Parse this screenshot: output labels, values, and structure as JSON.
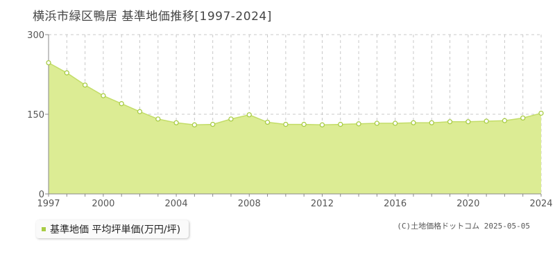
{
  "title": "横浜市緑区鴨居 基準地価推移[1997-2024]",
  "legend_label": "基準地価 平均坪単価(万円/坪)",
  "copyright": "(C)土地価格ドットコム 2025-05-05",
  "colors": {
    "fill": "#dcec94",
    "line": "#c3dd68",
    "point_stroke": "#a8cc45",
    "point_fill": "#ffffff",
    "legend_marker": "#a8cc45",
    "grid_dash": "#c8c8c8",
    "axis": "#888888"
  },
  "chart_data": {
    "type": "area",
    "x": [
      1997,
      1998,
      1999,
      2000,
      2001,
      2002,
      2003,
      2004,
      2005,
      2006,
      2007,
      2008,
      2009,
      2010,
      2011,
      2012,
      2013,
      2014,
      2015,
      2016,
      2017,
      2018,
      2019,
      2020,
      2021,
      2022,
      2023,
      2024
    ],
    "series": [
      {
        "name": "基準地価 平均坪単価(万円/坪)",
        "values": [
          247,
          228,
          205,
          185,
          170,
          155,
          141,
          134,
          130,
          131,
          141,
          149,
          135,
          131,
          131,
          130,
          131,
          132,
          133,
          133,
          134,
          134,
          136,
          136,
          137,
          138,
          143,
          152
        ]
      }
    ],
    "xlim": [
      1997,
      2024
    ],
    "ylim": [
      0,
      300
    ],
    "x_ticks": [
      "1997",
      "2000",
      "2004",
      "2008",
      "2012",
      "2016",
      "2020",
      "2024"
    ],
    "y_ticks": [
      "0",
      "150",
      "300"
    ],
    "xlabel": "",
    "ylabel": "",
    "grid": true
  }
}
